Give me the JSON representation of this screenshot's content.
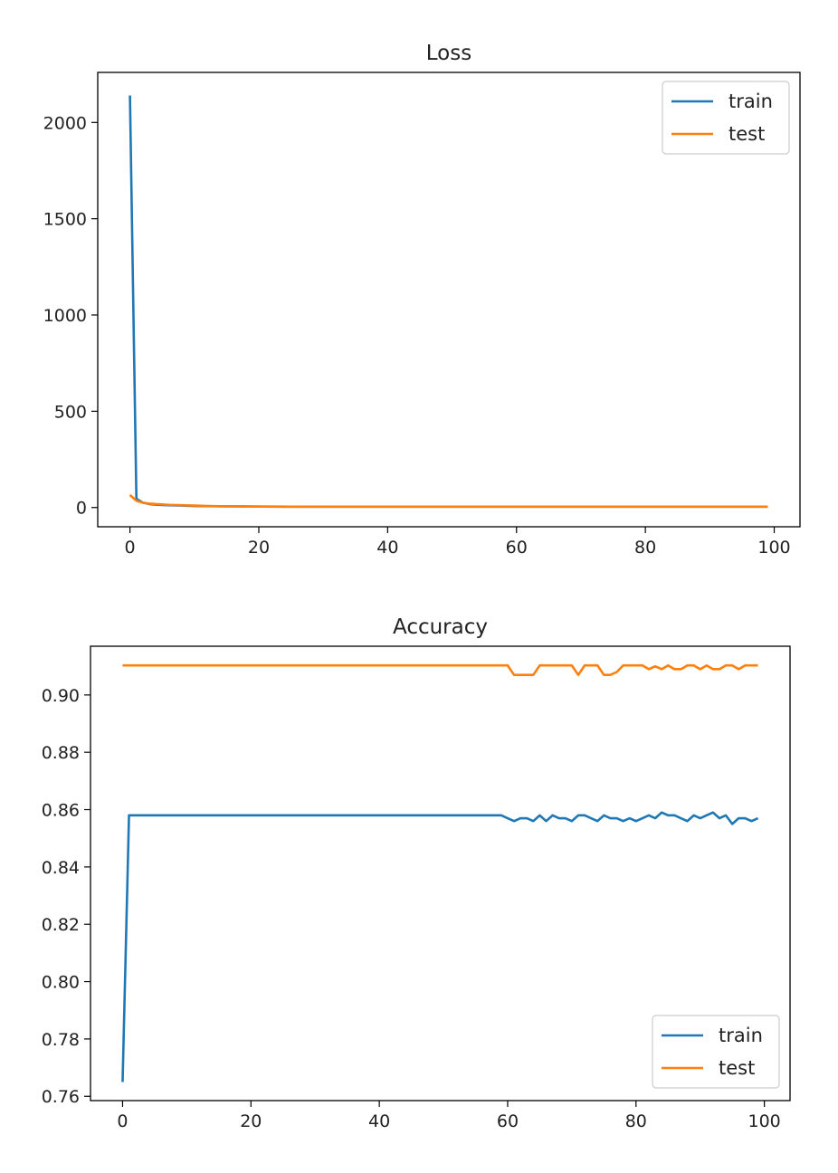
{
  "figure": {
    "background": "#ffffff",
    "series_colors": {
      "train": "#1f77b4",
      "test": "#ff7f0e"
    }
  },
  "chart_data": [
    {
      "type": "line",
      "title": "Loss",
      "xlabel": "",
      "ylabel": "",
      "xlim": [
        -5,
        104
      ],
      "ylim": [
        -100,
        2260
      ],
      "xticks": [
        0,
        20,
        40,
        60,
        80,
        100
      ],
      "xtick_labels": [
        "0",
        "20",
        "40",
        "60",
        "80",
        "100"
      ],
      "yticks": [
        0,
        500,
        1000,
        1500,
        2000
      ],
      "ytick_labels": [
        "0",
        "500",
        "1000",
        "1500",
        "2000"
      ],
      "grid": false,
      "legend": {
        "position": "upper right",
        "entries": [
          "train",
          "test"
        ]
      },
      "x": [
        0,
        1,
        2,
        3,
        4,
        5,
        6,
        8,
        10,
        12,
        15,
        20,
        25,
        30,
        40,
        50,
        60,
        70,
        80,
        90,
        99
      ],
      "series": [
        {
          "name": "train",
          "color": "#1f77b4",
          "values": [
            2140,
            45,
            25,
            18,
            15,
            13,
            12,
            10,
            8,
            7,
            6,
            5,
            4.5,
            4,
            4,
            4,
            4,
            4,
            4,
            4,
            4
          ]
        },
        {
          "name": "test",
          "color": "#ff7f0e",
          "values": [
            65,
            35,
            25,
            20,
            18,
            16,
            14,
            12,
            10,
            8,
            6,
            5,
            4.5,
            4,
            4,
            4,
            4,
            4,
            4,
            4,
            4
          ]
        }
      ]
    },
    {
      "type": "line",
      "title": "Accuracy",
      "xlabel": "",
      "ylabel": "",
      "xlim": [
        -5,
        104
      ],
      "ylim": [
        0.7585,
        0.917
      ],
      "xticks": [
        0,
        20,
        40,
        60,
        80,
        100
      ],
      "xtick_labels": [
        "0",
        "20",
        "40",
        "60",
        "80",
        "100"
      ],
      "yticks": [
        0.76,
        0.78,
        0.8,
        0.82,
        0.84,
        0.86,
        0.88,
        0.9
      ],
      "ytick_labels": [
        "0.76",
        "0.78",
        "0.80",
        "0.82",
        "0.84",
        "0.86",
        "0.88",
        "0.90"
      ],
      "grid": false,
      "legend": {
        "position": "lower right",
        "entries": [
          "train",
          "test"
        ]
      },
      "x": [
        0,
        1,
        2,
        3,
        4,
        5,
        6,
        7,
        8,
        9,
        10,
        11,
        12,
        13,
        14,
        15,
        16,
        17,
        18,
        19,
        20,
        21,
        22,
        23,
        24,
        25,
        26,
        27,
        28,
        29,
        30,
        31,
        32,
        33,
        34,
        35,
        36,
        37,
        38,
        39,
        40,
        41,
        42,
        43,
        44,
        45,
        46,
        47,
        48,
        49,
        50,
        51,
        52,
        53,
        54,
        55,
        56,
        57,
        58,
        59,
        60,
        61,
        62,
        63,
        64,
        65,
        66,
        67,
        68,
        69,
        70,
        71,
        72,
        73,
        74,
        75,
        76,
        77,
        78,
        79,
        80,
        81,
        82,
        83,
        84,
        85,
        86,
        87,
        88,
        89,
        90,
        91,
        92,
        93,
        94,
        95,
        96,
        97,
        98,
        99
      ],
      "series": [
        {
          "name": "train",
          "color": "#1f77b4",
          "values": [
            0.765,
            0.858,
            0.858,
            0.858,
            0.858,
            0.858,
            0.858,
            0.858,
            0.858,
            0.858,
            0.858,
            0.858,
            0.858,
            0.858,
            0.858,
            0.858,
            0.858,
            0.858,
            0.858,
            0.858,
            0.858,
            0.858,
            0.858,
            0.858,
            0.858,
            0.858,
            0.858,
            0.858,
            0.858,
            0.858,
            0.858,
            0.858,
            0.858,
            0.858,
            0.858,
            0.858,
            0.858,
            0.858,
            0.858,
            0.858,
            0.858,
            0.858,
            0.858,
            0.858,
            0.858,
            0.858,
            0.858,
            0.858,
            0.858,
            0.858,
            0.858,
            0.858,
            0.858,
            0.858,
            0.858,
            0.858,
            0.858,
            0.858,
            0.858,
            0.858,
            0.857,
            0.856,
            0.857,
            0.857,
            0.856,
            0.858,
            0.856,
            0.858,
            0.857,
            0.857,
            0.856,
            0.858,
            0.858,
            0.857,
            0.856,
            0.858,
            0.857,
            0.857,
            0.856,
            0.857,
            0.856,
            0.857,
            0.858,
            0.857,
            0.859,
            0.858,
            0.858,
            0.857,
            0.856,
            0.858,
            0.857,
            0.858,
            0.859,
            0.857,
            0.858,
            0.855,
            0.857,
            0.857,
            0.856,
            0.857
          ]
        },
        {
          "name": "test",
          "color": "#ff7f0e",
          "values": [
            0.9103,
            0.9103,
            0.9103,
            0.9103,
            0.9103,
            0.9103,
            0.9103,
            0.9103,
            0.9103,
            0.9103,
            0.9103,
            0.9103,
            0.9103,
            0.9103,
            0.9103,
            0.9103,
            0.9103,
            0.9103,
            0.9103,
            0.9103,
            0.9103,
            0.9103,
            0.9103,
            0.9103,
            0.9103,
            0.9103,
            0.9103,
            0.9103,
            0.9103,
            0.9103,
            0.9103,
            0.9103,
            0.9103,
            0.9103,
            0.9103,
            0.9103,
            0.9103,
            0.9103,
            0.9103,
            0.9103,
            0.9103,
            0.9103,
            0.9103,
            0.9103,
            0.9103,
            0.9103,
            0.9103,
            0.9103,
            0.9103,
            0.9103,
            0.9103,
            0.9103,
            0.9103,
            0.9103,
            0.9103,
            0.9103,
            0.9103,
            0.9103,
            0.9103,
            0.9103,
            0.9103,
            0.907,
            0.907,
            0.907,
            0.907,
            0.9103,
            0.9103,
            0.9103,
            0.9103,
            0.9103,
            0.9103,
            0.907,
            0.9103,
            0.9103,
            0.9103,
            0.907,
            0.907,
            0.908,
            0.9103,
            0.9103,
            0.9103,
            0.9103,
            0.909,
            0.91,
            0.909,
            0.9103,
            0.909,
            0.909,
            0.9103,
            0.9103,
            0.909,
            0.9103,
            0.909,
            0.909,
            0.9103,
            0.9103,
            0.909,
            0.9103,
            0.9103,
            0.9103
          ]
        }
      ]
    }
  ]
}
